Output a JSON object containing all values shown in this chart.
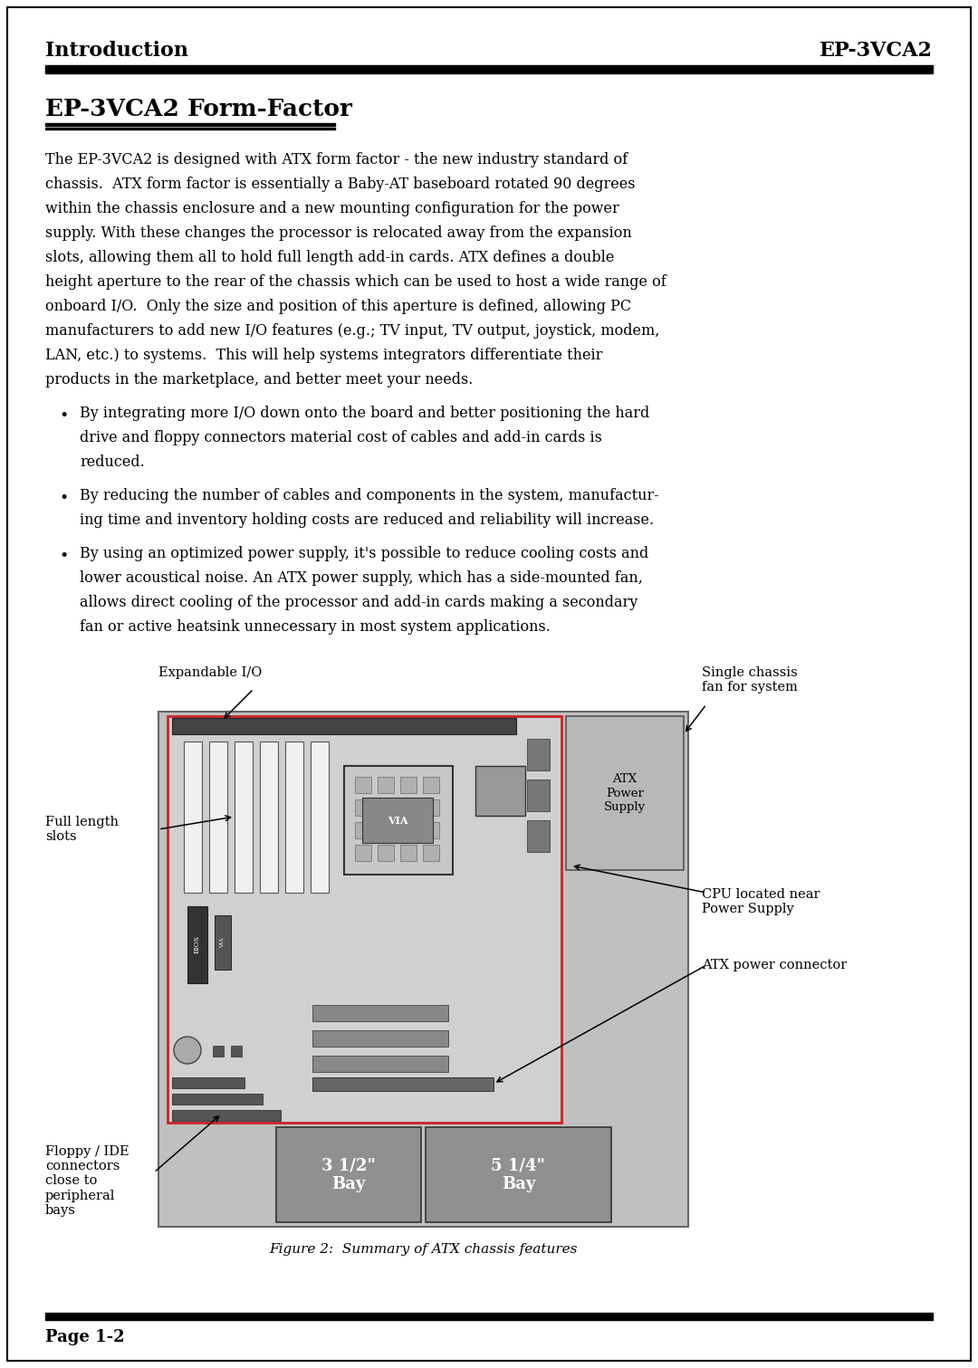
{
  "title_left": "Introduction",
  "title_right": "EP-3VCA2",
  "section_title": "EP-3VCA2 Form-Factor",
  "body_text": [
    "The EP-3VCA2 is designed with ATX form factor - the new industry standard of",
    "chassis.  ATX form factor is essentially a Baby-AT baseboard rotated 90 degrees",
    "within the chassis enclosure and a new mounting configuration for the power",
    "supply. With these changes the processor is relocated away from the expansion",
    "slots, allowing them all to hold full length add-in cards. ATX defines a double",
    "height aperture to the rear of the chassis which can be used to host a wide range of",
    "onboard I/O.  Only the size and position of this aperture is defined, allowing PC",
    "manufacturers to add new I/O features (e.g.; TV input, TV output, joystick, modem,",
    "LAN, etc.) to systems.  This will help systems integrators differentiate their",
    "products in the marketplace, and better meet your needs."
  ],
  "bullet1": [
    "By integrating more I/O down onto the board and better positioning the hard",
    "drive and floppy connectors material cost of cables and add-in cards is",
    "reduced."
  ],
  "bullet2": [
    "By reducing the number of cables and components in the system, manufactur-",
    "ing time and inventory holding costs are reduced and reliability will increase."
  ],
  "bullet3": [
    "By using an optimized power supply, it's possible to reduce cooling costs and",
    "lower acoustical noise. An ATX power supply, which has a side-mounted fan,",
    "allows direct cooling of the processor and add-in cards making a secondary",
    "fan or active heatsink unnecessary in most system applications."
  ],
  "label_expandable_io": "Expandable I/O",
  "label_single_chassis": "Single chassis\nfan for system",
  "label_full_length": "Full length\nslots",
  "label_cpu": "CPU located near\nPower Supply",
  "label_atx_power_connector": "ATX power connector",
  "label_floppy_ide": "Floppy / IDE\nconnectors\nclose to\nperipheral\nbays",
  "label_atx_power_supply": "ATX\nPower\nSupply",
  "label_bay1": "3 1/2\"\nBay",
  "label_bay2": "5 1/4\"\nBay",
  "fig_caption": "Figure 2:  Summary of ATX chassis features",
  "footer_left": "Page 1-2",
  "bg_color": "#ffffff",
  "text_color": "#000000",
  "header_bar_color": "#000000",
  "footer_bar_color": "#000000"
}
